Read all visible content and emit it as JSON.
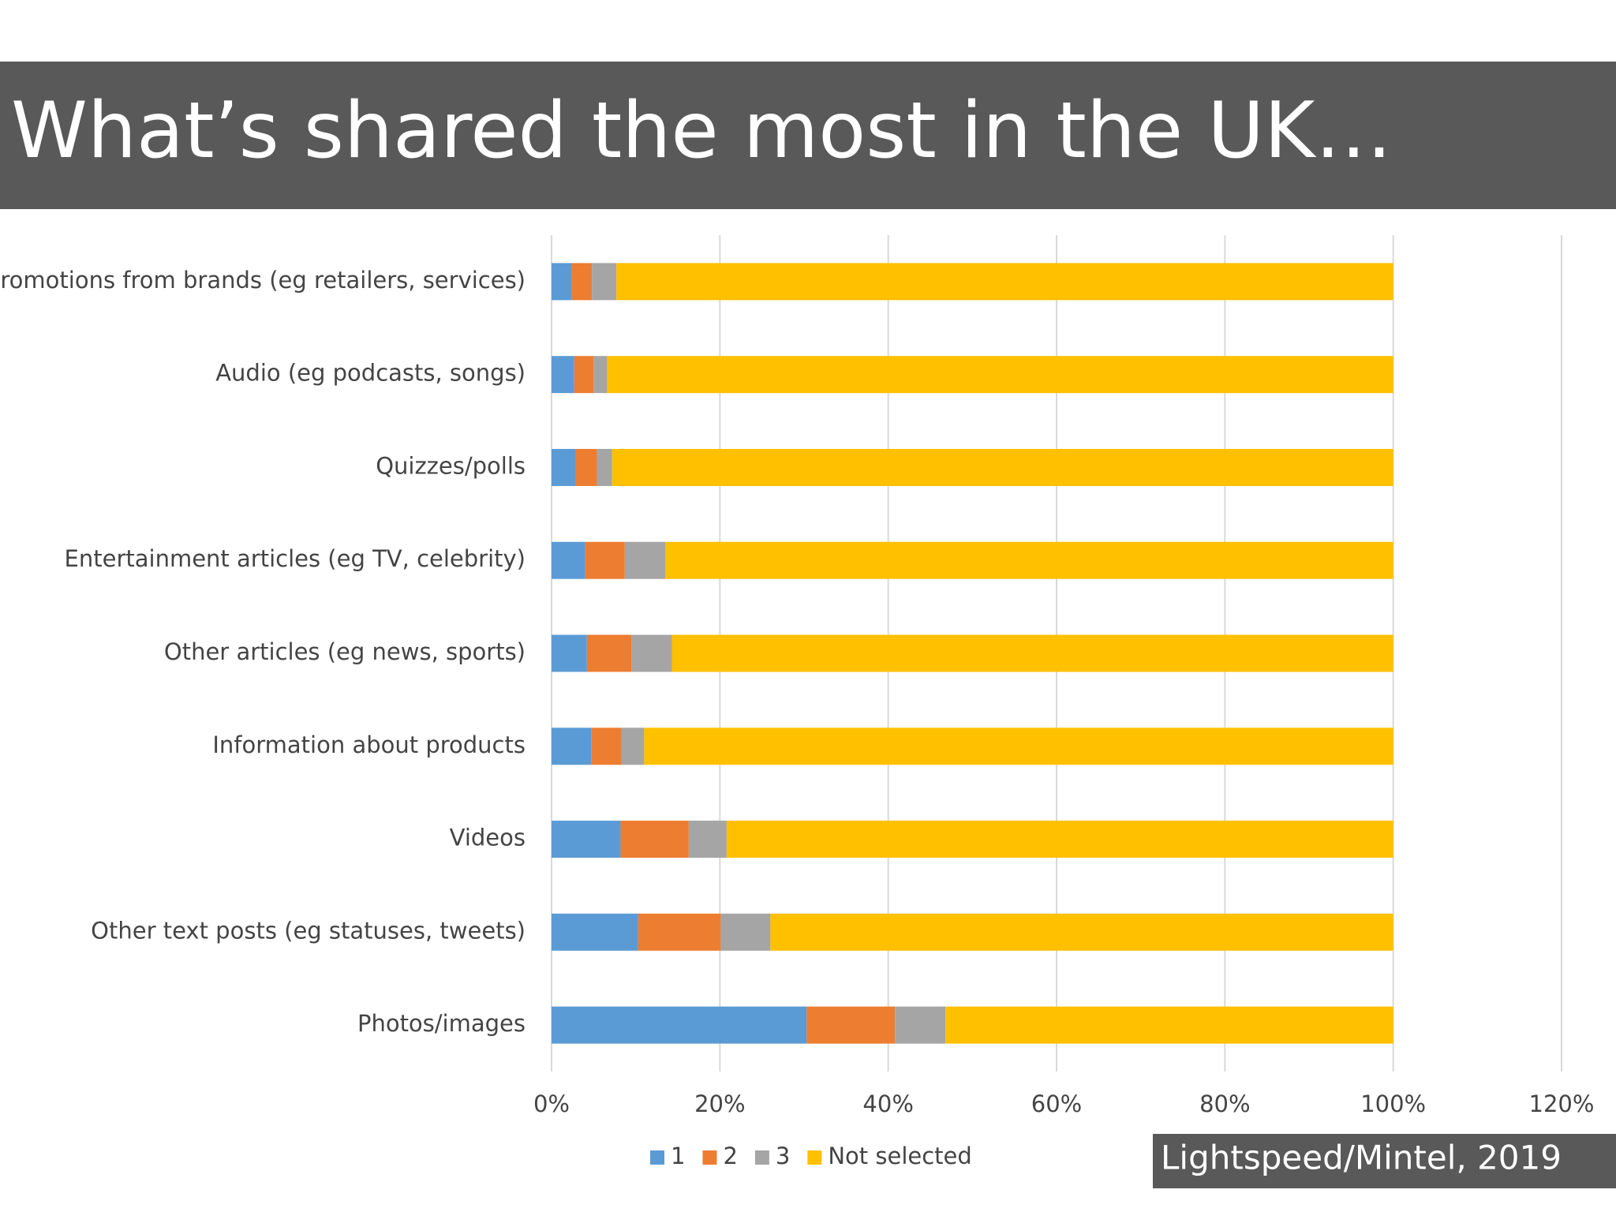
{
  "chart_data": {
    "type": "stacked-bar-horizontal",
    "title": "What’s shared the most in the UK…",
    "source": "Lightspeed/Mintel, 2019",
    "categories": [
      "Promotions from brands (eg retailers, services)",
      "Audio (eg podcasts, songs)",
      "Quizzes/polls",
      "Entertainment articles (eg TV, celebrity)",
      "Other articles (eg news, sports)",
      "Information about products",
      "Videos",
      "Other text posts (eg statuses, tweets)",
      "Photos/images"
    ],
    "series": [
      {
        "name": "1",
        "color": "#5b9bd5",
        "values": [
          2.4,
          2.7,
          2.9,
          4.0,
          4.2,
          4.7,
          8.2,
          10.3,
          30.3
        ]
      },
      {
        "name": "2",
        "color": "#ed7d31",
        "values": [
          2.4,
          2.3,
          2.5,
          4.7,
          5.3,
          3.6,
          8.1,
          9.8,
          10.5
        ]
      },
      {
        "name": "3",
        "color": "#a5a5a5",
        "values": [
          2.9,
          1.6,
          1.8,
          4.8,
          4.8,
          2.7,
          4.5,
          5.9,
          6.0
        ]
      },
      {
        "name": "Not selected",
        "color": "#ffc000",
        "values": [
          92.3,
          93.4,
          92.8,
          86.5,
          85.7,
          89.0,
          79.2,
          74.0,
          53.2
        ]
      }
    ],
    "xlim": [
      0,
      120
    ],
    "xticks": [
      {
        "value": 0,
        "label": "0%"
      },
      {
        "value": 20,
        "label": "20%"
      },
      {
        "value": 40,
        "label": "40%"
      },
      {
        "value": 60,
        "label": "60%"
      },
      {
        "value": 80,
        "label": "80%"
      },
      {
        "value": 100,
        "label": "100%"
      },
      {
        "value": 120,
        "label": "120%"
      }
    ],
    "grid": true,
    "legend": "bottom"
  }
}
